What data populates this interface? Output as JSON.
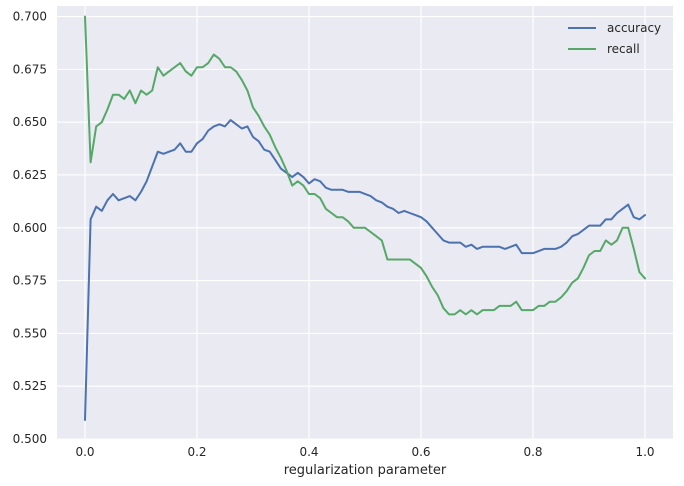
{
  "chart_data": {
    "type": "line",
    "title": "",
    "xlabel": "regularization parameter",
    "ylabel": "",
    "xlim": [
      -0.05,
      1.05
    ],
    "ylim": [
      0.5,
      0.705
    ],
    "xticks": [
      0.0,
      0.2,
      0.4,
      0.6,
      0.8,
      1.0
    ],
    "xtick_labels": [
      "0.0",
      "0.2",
      "0.4",
      "0.6",
      "0.8",
      "1.0"
    ],
    "yticks": [
      0.5,
      0.525,
      0.55,
      0.575,
      0.6,
      0.625,
      0.65,
      0.675,
      0.7
    ],
    "ytick_labels": [
      "0.500",
      "0.525",
      "0.550",
      "0.575",
      "0.600",
      "0.625",
      "0.650",
      "0.675",
      "0.700"
    ],
    "grid": true,
    "legend_position": "top-right",
    "x": [
      0.0,
      0.01,
      0.02,
      0.03,
      0.04,
      0.05,
      0.06,
      0.07,
      0.08,
      0.09,
      0.1,
      0.11,
      0.12,
      0.13,
      0.14,
      0.15,
      0.16,
      0.17,
      0.18,
      0.19,
      0.2,
      0.21,
      0.22,
      0.23,
      0.24,
      0.25,
      0.26,
      0.27,
      0.28,
      0.29,
      0.3,
      0.31,
      0.32,
      0.33,
      0.34,
      0.35,
      0.36,
      0.37,
      0.38,
      0.39,
      0.4,
      0.41,
      0.42,
      0.43,
      0.44,
      0.45,
      0.46,
      0.47,
      0.48,
      0.49,
      0.5,
      0.51,
      0.52,
      0.53,
      0.54,
      0.55,
      0.56,
      0.57,
      0.58,
      0.59,
      0.6,
      0.61,
      0.62,
      0.63,
      0.64,
      0.65,
      0.66,
      0.67,
      0.68,
      0.69,
      0.7,
      0.71,
      0.72,
      0.73,
      0.74,
      0.75,
      0.76,
      0.77,
      0.78,
      0.79,
      0.8,
      0.81,
      0.82,
      0.83,
      0.84,
      0.85,
      0.86,
      0.87,
      0.88,
      0.89,
      0.9,
      0.91,
      0.92,
      0.93,
      0.94,
      0.95,
      0.96,
      0.97,
      0.98,
      0.99,
      1.0
    ],
    "series": [
      {
        "name": "accuracy",
        "color": "#4c72b0",
        "values": [
          0.509,
          0.604,
          0.61,
          0.608,
          0.613,
          0.616,
          0.613,
          0.614,
          0.615,
          0.613,
          0.617,
          0.622,
          0.629,
          0.636,
          0.635,
          0.636,
          0.637,
          0.64,
          0.636,
          0.636,
          0.64,
          0.642,
          0.646,
          0.648,
          0.649,
          0.648,
          0.651,
          0.649,
          0.647,
          0.648,
          0.643,
          0.641,
          0.637,
          0.636,
          0.632,
          0.628,
          0.626,
          0.624,
          0.626,
          0.624,
          0.621,
          0.623,
          0.622,
          0.619,
          0.618,
          0.618,
          0.618,
          0.617,
          0.617,
          0.617,
          0.616,
          0.615,
          0.613,
          0.612,
          0.61,
          0.609,
          0.607,
          0.608,
          0.607,
          0.606,
          0.605,
          0.603,
          0.6,
          0.597,
          0.594,
          0.593,
          0.593,
          0.593,
          0.591,
          0.592,
          0.59,
          0.591,
          0.591,
          0.591,
          0.591,
          0.59,
          0.591,
          0.592,
          0.588,
          0.588,
          0.588,
          0.589,
          0.59,
          0.59,
          0.59,
          0.591,
          0.593,
          0.596,
          0.597,
          0.599,
          0.601,
          0.601,
          0.601,
          0.604,
          0.604,
          0.607,
          0.609,
          0.611,
          0.605,
          0.604,
          0.606
        ]
      },
      {
        "name": "recall",
        "color": "#55a868",
        "values": [
          0.7,
          0.631,
          0.648,
          0.65,
          0.656,
          0.663,
          0.663,
          0.661,
          0.665,
          0.659,
          0.665,
          0.663,
          0.665,
          0.676,
          0.672,
          0.674,
          0.676,
          0.678,
          0.674,
          0.672,
          0.676,
          0.676,
          0.678,
          0.682,
          0.68,
          0.676,
          0.676,
          0.674,
          0.67,
          0.665,
          0.657,
          0.653,
          0.648,
          0.644,
          0.638,
          0.633,
          0.627,
          0.62,
          0.622,
          0.62,
          0.616,
          0.616,
          0.614,
          0.609,
          0.607,
          0.605,
          0.605,
          0.603,
          0.6,
          0.6,
          0.6,
          0.598,
          0.596,
          0.594,
          0.585,
          0.585,
          0.585,
          0.585,
          0.585,
          0.583,
          0.581,
          0.577,
          0.572,
          0.568,
          0.562,
          0.559,
          0.559,
          0.561,
          0.559,
          0.561,
          0.559,
          0.561,
          0.561,
          0.561,
          0.563,
          0.563,
          0.563,
          0.565,
          0.561,
          0.561,
          0.561,
          0.563,
          0.563,
          0.565,
          0.565,
          0.567,
          0.57,
          0.574,
          0.576,
          0.581,
          0.587,
          0.589,
          0.589,
          0.594,
          0.592,
          0.594,
          0.6,
          0.6,
          0.59,
          0.579,
          0.576
        ]
      }
    ]
  },
  "style": {
    "plot_background": "#eaeaf2",
    "grid_color": "#ffffff",
    "text_color": "#262626"
  }
}
